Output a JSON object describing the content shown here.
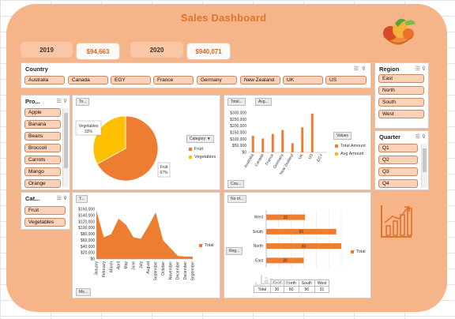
{
  "dashboard_title": "Sales Dashboard",
  "kpis": [
    {
      "year": "2019",
      "value": "$94,663"
    },
    {
      "year": "2020",
      "value": "$940,071"
    }
  ],
  "country_slicer": {
    "title": "Country",
    "items": [
      "Australia",
      "Canada",
      "EGY",
      "France",
      "Germany",
      "New Zealand",
      "UK",
      "US"
    ]
  },
  "product_slicer": {
    "title": "Pro...",
    "items": [
      "Apple",
      "Banana",
      "Beans",
      "Broccoli",
      "Carrots",
      "Mango",
      "Orange"
    ]
  },
  "category_slicer": {
    "title": "Cat...",
    "items": [
      "Fruit",
      "Vegetables"
    ]
  },
  "region_slicer": {
    "title": "Region",
    "items": [
      "East",
      "North",
      "South",
      "West"
    ]
  },
  "quarter_slicer": {
    "title": "Quarter",
    "items": [
      "Q1",
      "Q2",
      "Q3",
      "Q4"
    ]
  },
  "pie_panel": {
    "field_button": "To...",
    "filter_button": "Category",
    "filter_arrow": "▼",
    "label_vegetables": "Vegetables\n33%",
    "label_fruit": "Fruit\n67%"
  },
  "bar_panel": {
    "field_buttons": [
      "Total...",
      "Avg..."
    ],
    "bottom_button": "Cou...",
    "legend_title": "Values",
    "legend": [
      "Total Amount",
      "Avg Amount"
    ]
  },
  "area_panel": {
    "field_button": "T...",
    "bottom_button": "Mo...",
    "legend": "Total"
  },
  "hbar_panel": {
    "field_button": "No of...",
    "side_button": "Reg...",
    "legend": "Total",
    "table_headers": [
      "",
      "East",
      "North",
      "South",
      "West"
    ],
    "table_row": [
      "Total",
      "30",
      "60",
      "56",
      "31"
    ]
  },
  "icons": {
    "logo": "fruit-bowl-icon",
    "growth": "growth-chart-icon",
    "multi_select": "multi-select-icon",
    "clear_filter": "clear-filter-icon"
  },
  "colors": {
    "frame": "#f5b589",
    "accent": "#ed7d31",
    "pie_secondary": "#ffc000",
    "title": "#e0742a"
  },
  "chart_data": [
    {
      "type": "pie",
      "title": "",
      "categories": [
        "Fruit",
        "Vegetables"
      ],
      "values": [
        67,
        33
      ],
      "legend": "right"
    },
    {
      "type": "bar",
      "title": "",
      "categories": [
        "Australia",
        "Canada",
        "France",
        "Germany",
        "New Zealand",
        "UK",
        "US",
        "EGY"
      ],
      "series": [
        {
          "name": "Total Amount",
          "values": [
            125000,
            105000,
            140000,
            170000,
            70000,
            190000,
            295000,
            0
          ]
        },
        {
          "name": "Avg Amount",
          "values": [
            0,
            0,
            0,
            0,
            0,
            0,
            0,
            0
          ]
        }
      ],
      "yticks": [
        "$0",
        "$50,000",
        "$100,000",
        "$150,000",
        "$200,000",
        "$250,000",
        "$300,000"
      ],
      "ylim": [
        0,
        300000
      ],
      "legend": "right"
    },
    {
      "type": "area",
      "title": "",
      "categories": [
        "January",
        "February",
        "March",
        "April",
        "May",
        "June",
        "July",
        "August",
        "September",
        "October",
        "November",
        "December",
        "December",
        "September"
      ],
      "values": [
        155000,
        70000,
        80000,
        130000,
        110000,
        70000,
        65000,
        105000,
        150000,
        60000,
        35000,
        10000,
        8000,
        8000
      ],
      "yticks": [
        "$0",
        "$20,000",
        "$40,000",
        "$60,000",
        "$80,000",
        "$100,000",
        "$120,000",
        "$140,000",
        "$160,000"
      ],
      "ylim": [
        0,
        160000
      ],
      "series": [
        {
          "name": "Total"
        }
      ],
      "legend": "right"
    },
    {
      "type": "bar",
      "orientation": "horizontal",
      "title": "",
      "categories": [
        "West",
        "South",
        "North",
        "East"
      ],
      "values": [
        31,
        56,
        60,
        30
      ],
      "xticks": [
        "0",
        "10",
        "20",
        "30",
        "40",
        "50",
        "60"
      ],
      "xlim": [
        0,
        60
      ],
      "series": [
        {
          "name": "Total"
        }
      ],
      "legend": "right"
    }
  ]
}
